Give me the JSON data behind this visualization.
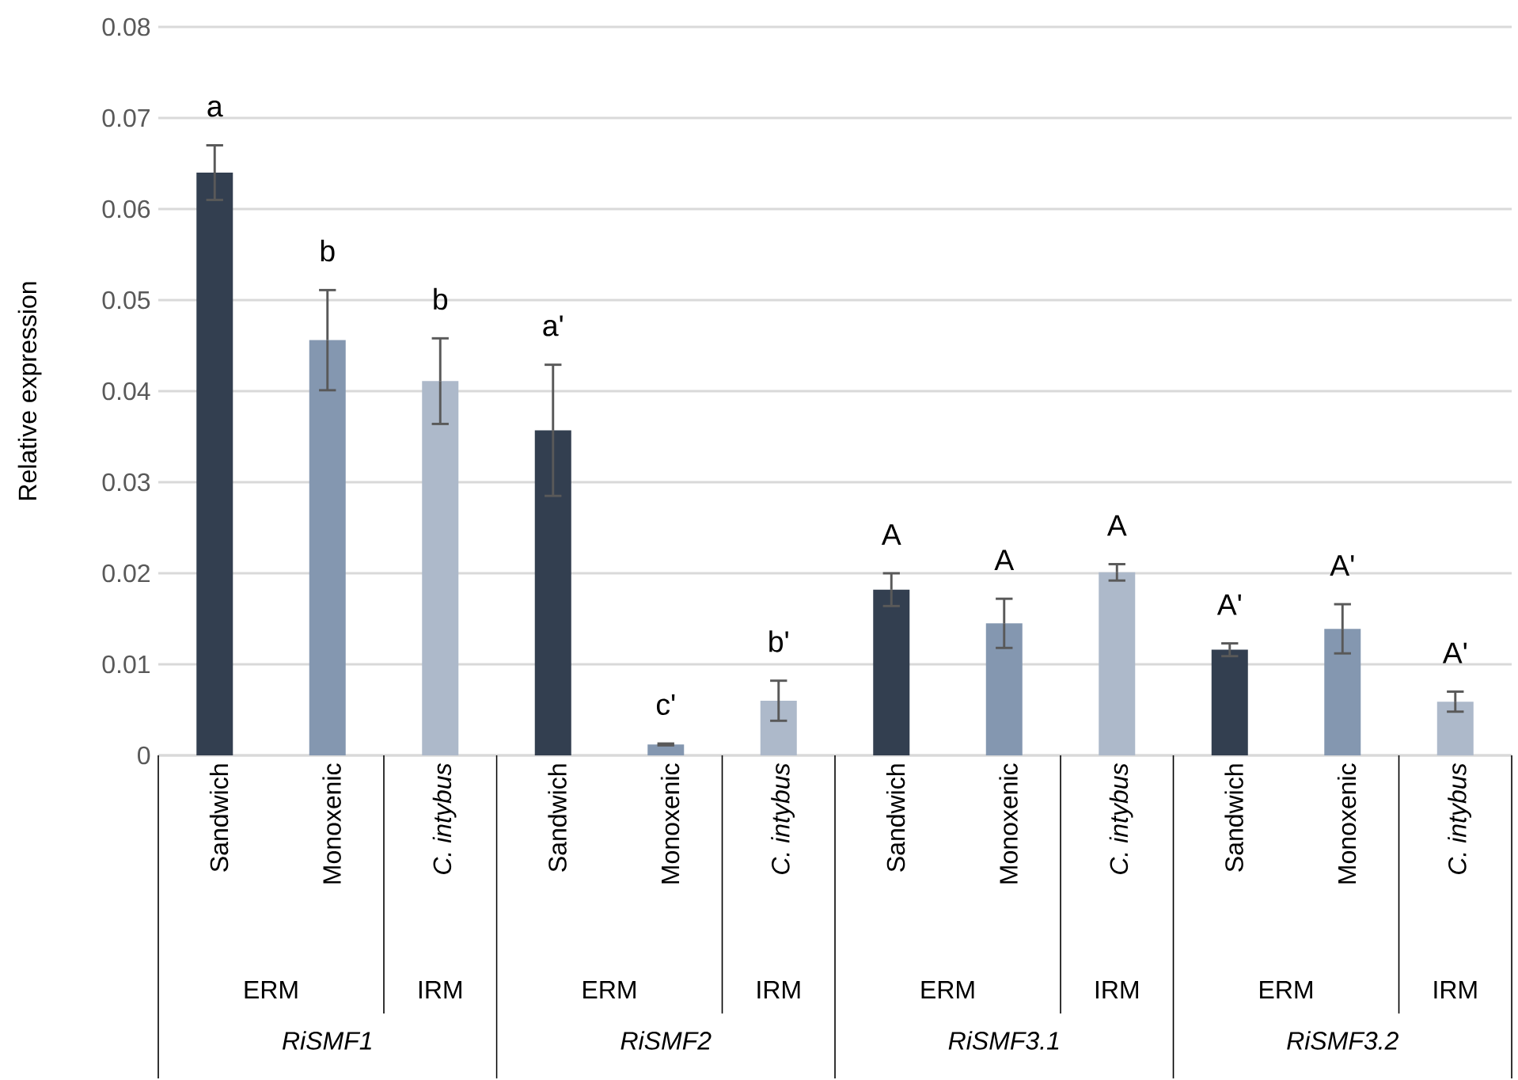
{
  "chart_data": {
    "type": "bar",
    "ylabel": "Relative expression",
    "categories": [
      "Sandwich",
      "Monoxenic",
      "C. intybus",
      "Sandwich",
      "Monoxenic",
      "C. intybus",
      "Sandwich",
      "Monoxenic",
      "C. intybus",
      "Sandwich",
      "Monoxenic",
      "C. intybus"
    ],
    "values": [
      0.064,
      0.0456,
      0.0411,
      0.0357,
      0.0012,
      0.006,
      0.0182,
      0.0145,
      0.0201,
      0.0116,
      0.0139,
      0.0059
    ],
    "errors": [
      0.003,
      0.0055,
      0.0047,
      0.0072,
      0.0001,
      0.0022,
      0.0018,
      0.0027,
      0.0009,
      0.0007,
      0.0027,
      0.0011
    ],
    "colors": [
      "#333f50",
      "#8497b0",
      "#adb9ca",
      "#333f50",
      "#8497b0",
      "#adb9ca",
      "#333f50",
      "#8497b0",
      "#adb9ca",
      "#333f50",
      "#8497b0",
      "#adb9ca"
    ],
    "ylim": [
      0,
      0.08
    ],
    "yticks": [
      0,
      0.01,
      0.02,
      0.03,
      0.04,
      0.05,
      0.06,
      0.07,
      0.08
    ],
    "grid": "y",
    "annotations": [
      "a",
      "b",
      "b",
      "a'",
      "c'",
      "b'",
      "A",
      "A",
      "A",
      "A'",
      "A'",
      "A'",
      "ERM",
      "IRM",
      "ERM",
      "IRM",
      "ERM",
      "IRM",
      "ERM",
      "IRM",
      "RiSMF1",
      "RiSMF2",
      "RiSMF3.1",
      "RiSMF3.2"
    ]
  }
}
